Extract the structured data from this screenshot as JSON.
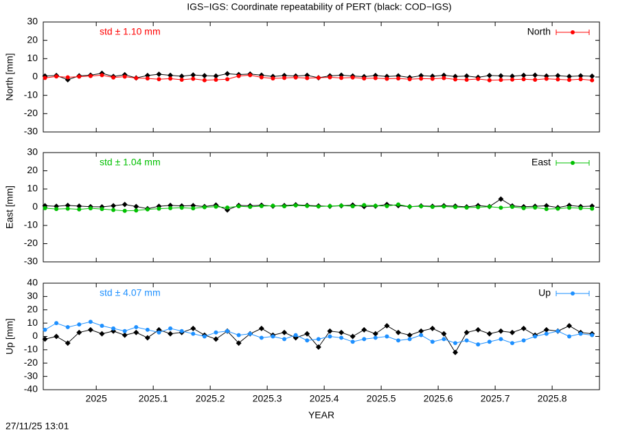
{
  "footer": "27/11/25 13:01",
  "chart_data": [
    {
      "type": "line",
      "title": "IGS−IGS: Coordinate repeatability of PERT (black: COD−IGS)",
      "annotation": "std ± 1.10 mm",
      "ylabel": "North [mm]",
      "xlim": [
        2024.907,
        2025.883
      ],
      "xticks": [
        2025,
        2025.1,
        2025.2,
        2025.3,
        2025.4,
        2025.5,
        2025.6,
        2025.7,
        2025.8
      ],
      "ylim": [
        -30,
        30
      ],
      "yticks": [
        -30,
        -20,
        -10,
        0,
        10,
        20,
        30
      ],
      "x": [
        2024.91,
        2024.93,
        2024.95,
        2024.97,
        2024.99,
        2025.01,
        2025.03,
        2025.05,
        2025.07,
        2025.09,
        2025.11,
        2025.13,
        2025.15,
        2025.17,
        2025.19,
        2025.21,
        2025.23,
        2025.25,
        2025.27,
        2025.29,
        2025.31,
        2025.33,
        2025.35,
        2025.37,
        2025.39,
        2025.41,
        2025.43,
        2025.45,
        2025.47,
        2025.49,
        2025.51,
        2025.53,
        2025.55,
        2025.57,
        2025.59,
        2025.61,
        2025.63,
        2025.65,
        2025.67,
        2025.69,
        2025.71,
        2025.73,
        2025.75,
        2025.77,
        2025.79,
        2025.81,
        2025.83,
        2025.85,
        2025.87
      ],
      "series": [
        {
          "color": "#000000",
          "values": [
            0.5,
            0.8,
            -1.5,
            0.6,
            1.0,
            2.0,
            0.3,
            1.2,
            -0.5,
            0.8,
            1.5,
            0.9,
            0.4,
            1.1,
            0.7,
            0.5,
            1.8,
            1.3,
            1.6,
            1.0,
            0.3,
            0.8,
            0.5,
            0.9,
            -0.4,
            0.6,
            1.0,
            0.5,
            0.2,
            0.8,
            0.3,
            0.6,
            -0.3,
            0.7,
            0.4,
            0.9,
            0.3,
            0.5,
            -0.2,
            0.8,
            0.6,
            0.4,
            0.9,
            1.0,
            0.5,
            0.7,
            0.3,
            0.6,
            0.4
          ]
        },
        {
          "name": "North",
          "color": "#ff0000",
          "values": [
            -0.5,
            0.3,
            -0.2,
            0.2,
            0.5,
            1.0,
            -0.3,
            0.2,
            -0.6,
            -0.8,
            -1.2,
            -0.9,
            -1.5,
            -1.0,
            -1.8,
            -1.5,
            -1.2,
            0.5,
            1.0,
            -0.2,
            -0.8,
            -0.5,
            -0.3,
            -0.6,
            -0.4,
            -0.2,
            -0.5,
            -0.3,
            -0.8,
            -0.6,
            -1.0,
            -0.8,
            -1.2,
            -0.9,
            -1.0,
            -0.6,
            -1.3,
            -1.5,
            -1.1,
            -1.8,
            -1.6,
            -1.4,
            -1.2,
            -1.5,
            -1.0,
            -1.3,
            -1.6,
            -1.2,
            -1.8
          ]
        }
      ]
    },
    {
      "type": "line",
      "annotation": "std ± 1.04 mm",
      "ylabel": "East [mm]",
      "xlim": [
        2024.907,
        2025.883
      ],
      "xticks": [
        2025,
        2025.1,
        2025.2,
        2025.3,
        2025.4,
        2025.5,
        2025.6,
        2025.7,
        2025.8
      ],
      "ylim": [
        -30,
        30
      ],
      "yticks": [
        -30,
        -20,
        -10,
        0,
        10,
        20,
        30
      ],
      "x": [
        2024.91,
        2024.93,
        2024.95,
        2024.97,
        2024.99,
        2025.01,
        2025.03,
        2025.05,
        2025.07,
        2025.09,
        2025.11,
        2025.13,
        2025.15,
        2025.17,
        2025.19,
        2025.21,
        2025.23,
        2025.25,
        2025.27,
        2025.29,
        2025.31,
        2025.33,
        2025.35,
        2025.37,
        2025.39,
        2025.41,
        2025.43,
        2025.45,
        2025.47,
        2025.49,
        2025.51,
        2025.53,
        2025.55,
        2025.57,
        2025.59,
        2025.61,
        2025.63,
        2025.65,
        2025.67,
        2025.69,
        2025.71,
        2025.73,
        2025.75,
        2025.77,
        2025.79,
        2025.81,
        2025.83,
        2025.85,
        2025.87
      ],
      "series": [
        {
          "color": "#000000",
          "values": [
            0.8,
            0.5,
            1.0,
            0.6,
            0.3,
            0.2,
            0.8,
            1.5,
            0.4,
            -0.8,
            0.5,
            1.0,
            0.7,
            0.9,
            0.4,
            1.2,
            -1.5,
            1.0,
            0.8,
            1.1,
            0.6,
            0.9,
            1.3,
            1.0,
            0.7,
            0.5,
            0.8,
            1.2,
            0.4,
            0.6,
            1.5,
            0.9,
            0.3,
            0.7,
            0.5,
            0.8,
            0.6,
            0.2,
            0.9,
            0.4,
            4.5,
            0.7,
            0.3,
            0.5,
            0.8,
            -0.2,
            1.0,
            0.4,
            0.6
          ]
        },
        {
          "name": "East",
          "color": "#00c000",
          "values": [
            -0.5,
            -1.0,
            -0.8,
            -1.2,
            -0.6,
            -1.0,
            -1.5,
            -2.0,
            -1.8,
            -1.2,
            -0.8,
            -0.5,
            -0.3,
            -0.6,
            0.0,
            0.3,
            -0.2,
            0.5,
            0.2,
            0.6,
            0.8,
            0.5,
            1.0,
            0.7,
            0.4,
            0.6,
            0.9,
            0.5,
            1.2,
            0.8,
            0.6,
            1.5,
            0.3,
            0.5,
            0.2,
            0.4,
            0.1,
            -0.2,
            0.0,
            0.3,
            -0.3,
            0.2,
            -0.5,
            -0.2,
            -1.0,
            -0.8,
            -0.3,
            -0.5,
            -0.8
          ]
        }
      ]
    },
    {
      "type": "line",
      "annotation": "std ± 4.07 mm",
      "ylabel": "Up [mm]",
      "xlabel": "YEAR",
      "xlim": [
        2024.907,
        2025.883
      ],
      "xticks": [
        2025,
        2025.1,
        2025.2,
        2025.3,
        2025.4,
        2025.5,
        2025.6,
        2025.7,
        2025.8
      ],
      "ylim": [
        -40,
        40
      ],
      "yticks": [
        -40,
        -30,
        -20,
        -10,
        0,
        10,
        20,
        30,
        40
      ],
      "x": [
        2024.91,
        2024.93,
        2024.95,
        2024.97,
        2024.99,
        2025.01,
        2025.03,
        2025.05,
        2025.07,
        2025.09,
        2025.11,
        2025.13,
        2025.15,
        2025.17,
        2025.19,
        2025.21,
        2025.23,
        2025.25,
        2025.27,
        2025.29,
        2025.31,
        2025.33,
        2025.35,
        2025.37,
        2025.39,
        2025.41,
        2025.43,
        2025.45,
        2025.47,
        2025.49,
        2025.51,
        2025.53,
        2025.55,
        2025.57,
        2025.59,
        2025.61,
        2025.63,
        2025.65,
        2025.67,
        2025.69,
        2025.71,
        2025.73,
        2025.75,
        2025.77,
        2025.79,
        2025.81,
        2025.83,
        2025.85,
        2025.87
      ],
      "series": [
        {
          "color": "#000000",
          "values": [
            -2,
            0,
            -5,
            3,
            5,
            2,
            4,
            1,
            3,
            -1,
            5,
            2,
            3,
            6,
            1,
            -2,
            4,
            -5,
            2,
            6,
            1,
            3,
            -1,
            2,
            -8,
            4,
            3,
            0,
            5,
            2,
            8,
            3,
            1,
            4,
            6,
            2,
            -12,
            3,
            5,
            2,
            4,
            3,
            6,
            1,
            5,
            4,
            8,
            3,
            2
          ]
        },
        {
          "name": "Up",
          "color": "#1e90ff",
          "values": [
            5,
            10,
            7,
            9,
            11,
            8,
            6,
            4,
            7,
            5,
            3,
            6,
            4,
            2,
            0,
            3,
            4,
            1,
            2,
            -1,
            0,
            -2,
            1,
            -3,
            -2,
            0,
            -1,
            -4,
            -2,
            -1,
            0,
            -3,
            -2,
            1,
            -4,
            -2,
            -5,
            -3,
            -6,
            -4,
            -2,
            -5,
            -3,
            0,
            2,
            4,
            0,
            2,
            1
          ]
        }
      ]
    }
  ]
}
